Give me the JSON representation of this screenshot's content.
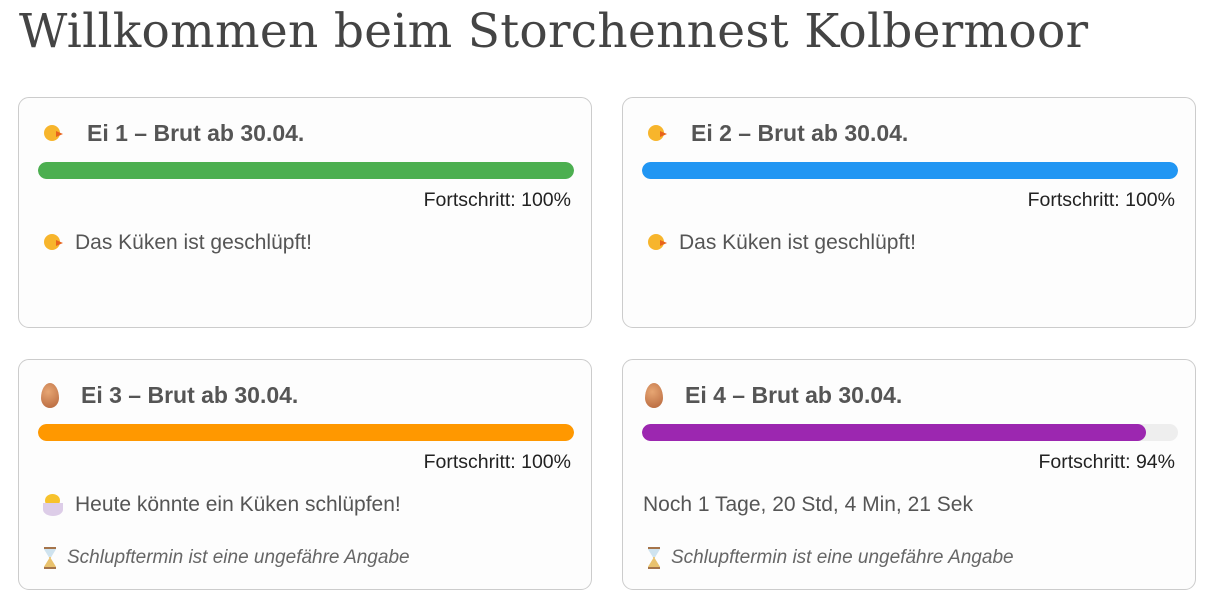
{
  "title": "Willkommen beim Storchennest Kolbermoor",
  "eggs": [
    {
      "icon": "chick-icon",
      "heading": "Ei 1 – Brut ab 30.04.",
      "progress": 100,
      "progress_label": "Fortschritt: 100%",
      "color": "#4caf50",
      "message": "Das Küken ist geschlüpft!",
      "message_icon": "chick-icon"
    },
    {
      "icon": "chick-icon",
      "heading": "Ei 2 – Brut ab 30.04.",
      "progress": 100,
      "progress_label": "Fortschritt: 100%",
      "color": "#2196f3",
      "message": "Das Küken ist geschlüpft!",
      "message_icon": "chick-icon"
    },
    {
      "icon": "egg-icon",
      "heading": "Ei 3 – Brut ab 30.04.",
      "progress": 100,
      "progress_label": "Fortschritt: 100%",
      "color": "#ff9800",
      "message": "Heute könnte ein Küken schlüpfen!",
      "message_icon": "hatching-chick-icon",
      "note": "Schlupftermin ist eine ungefähre Angabe"
    },
    {
      "icon": "egg-icon",
      "heading": "Ei 4 – Brut ab 30.04.",
      "progress": 94,
      "progress_label": "Fortschritt: 94%",
      "color": "#9c27b0",
      "message": "Noch 1 Tage, 20 Std, 4 Min, 21 Sek",
      "note": "Schlupftermin ist eine ungefähre Angabe"
    }
  ]
}
